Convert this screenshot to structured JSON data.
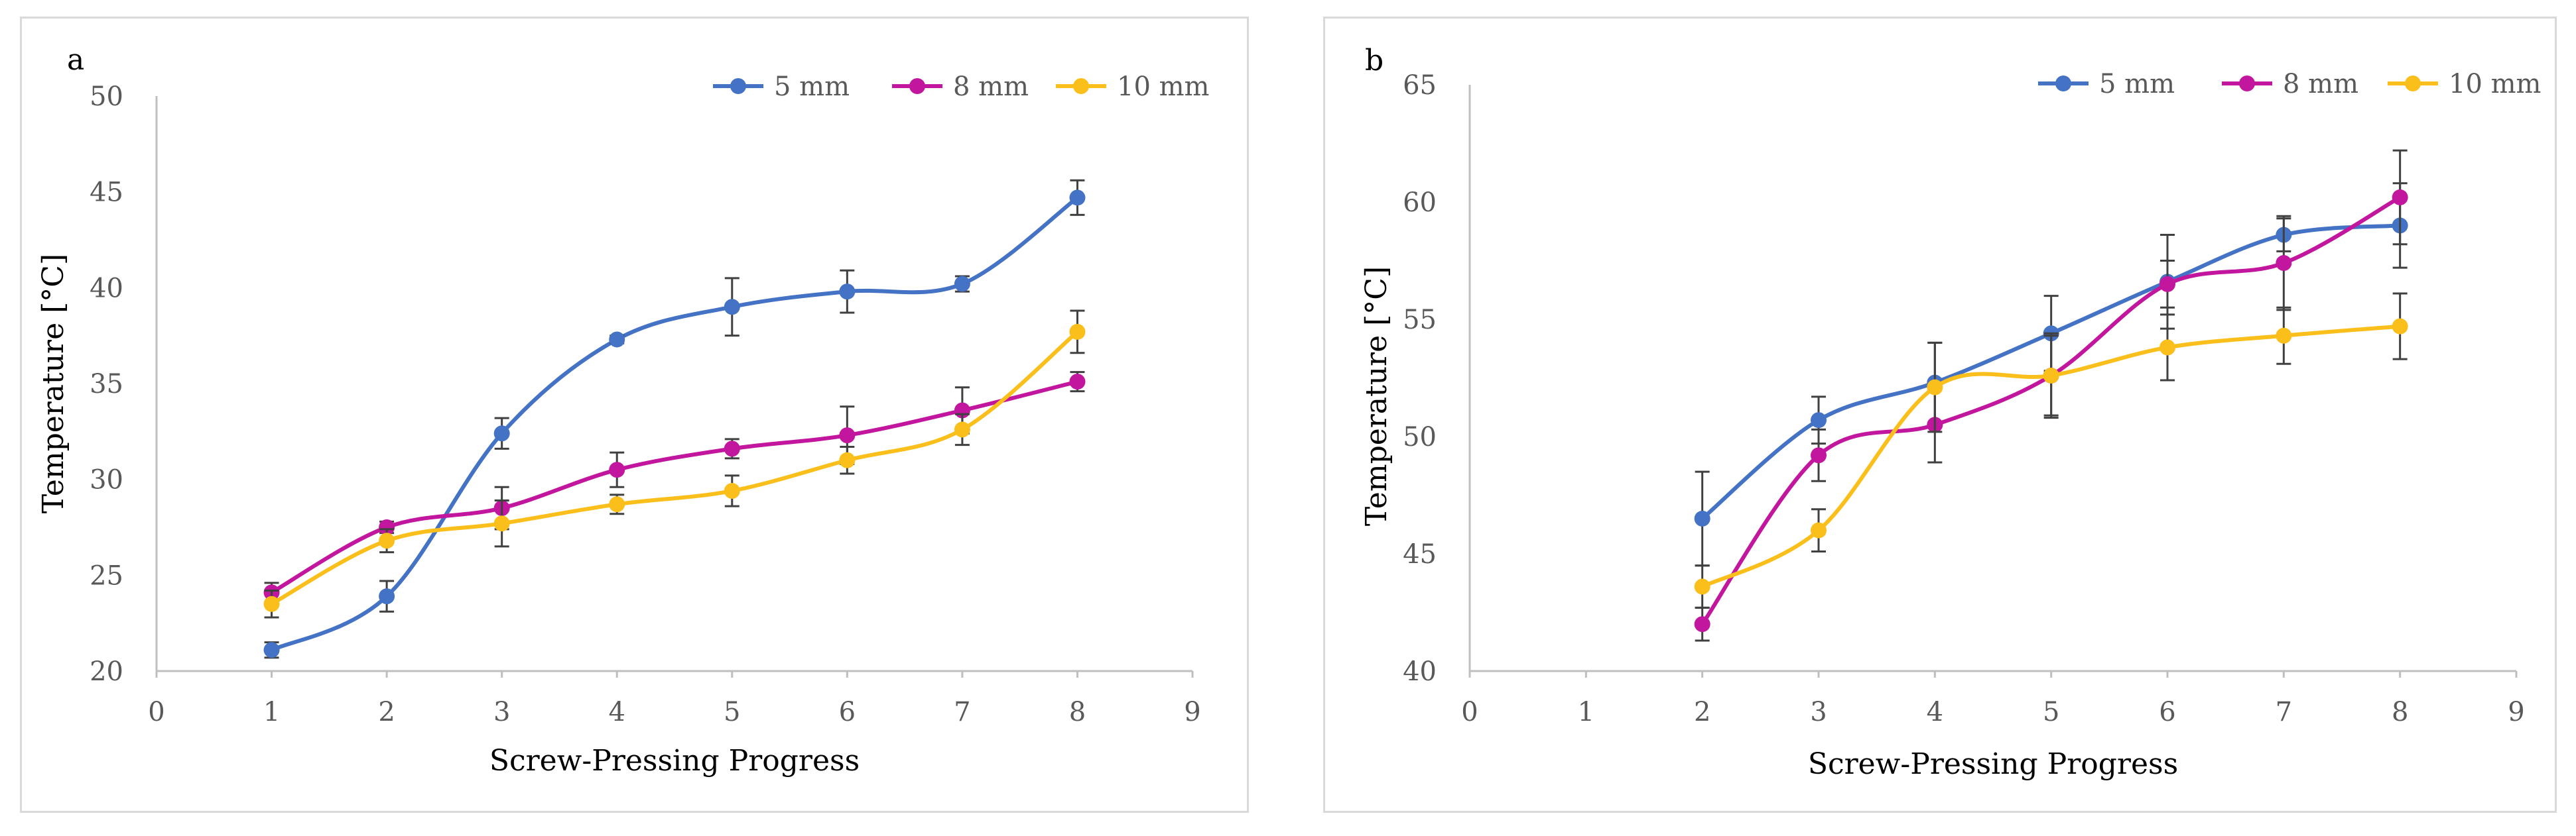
{
  "colors": {
    "s5": "#4472c4",
    "s8": "#c1169d",
    "s10": "#fbbf1b",
    "axis": "#bfbfbf",
    "err": "#404040",
    "text": "#595959"
  },
  "chart_data": [
    {
      "type": "line",
      "panel_label": "a",
      "xlabel": "Screw-Pressing Progress",
      "ylabel": "Temperature [°C]",
      "xlim": [
        0,
        9
      ],
      "ylim": [
        20,
        50
      ],
      "xticks": [
        0,
        1,
        2,
        3,
        4,
        5,
        6,
        7,
        8,
        9
      ],
      "yticks": [
        20,
        25,
        30,
        35,
        40,
        45,
        50
      ],
      "grid": false,
      "legend_position": "top-right",
      "series": [
        {
          "name": "5 mm",
          "color": "#4472c4",
          "x": [
            1,
            2,
            3,
            4,
            5,
            6,
            7,
            8
          ],
          "y": [
            21.1,
            23.9,
            32.4,
            37.3,
            39.0,
            39.8,
            40.2,
            44.7
          ],
          "err": [
            0.4,
            0.8,
            0.8,
            0.2,
            1.5,
            1.1,
            0.4,
            0.9
          ]
        },
        {
          "name": "8 mm",
          "color": "#c1169d",
          "x": [
            1,
            2,
            3,
            4,
            5,
            6,
            7,
            8
          ],
          "y": [
            24.1,
            27.5,
            28.5,
            30.5,
            31.6,
            32.3,
            33.6,
            35.1
          ],
          "err": [
            0.5,
            0.3,
            1.1,
            0.9,
            0.5,
            1.5,
            1.2,
            0.5
          ]
        },
        {
          "name": "10 mm",
          "color": "#fbbf1b",
          "x": [
            1,
            2,
            3,
            4,
            5,
            6,
            7,
            8
          ],
          "y": [
            23.5,
            26.8,
            27.7,
            28.7,
            29.4,
            31.0,
            32.6,
            37.7
          ],
          "err": [
            0.7,
            0.6,
            1.2,
            0.5,
            0.8,
            0.7,
            0.8,
            1.1
          ]
        }
      ]
    },
    {
      "type": "line",
      "panel_label": "b",
      "xlabel": "Screw-Pressing Progress",
      "ylabel": "Temperature [°C]",
      "xlim": [
        0,
        9
      ],
      "ylim": [
        40,
        65
      ],
      "xticks": [
        0,
        1,
        2,
        3,
        4,
        5,
        6,
        7,
        8,
        9
      ],
      "yticks": [
        40,
        45,
        50,
        55,
        60,
        65
      ],
      "grid": false,
      "legend_position": "top-right",
      "series": [
        {
          "name": "5 mm",
          "color": "#4472c4",
          "x": [
            2,
            3,
            4,
            5,
            6,
            7,
            8
          ],
          "y": [
            46.5,
            50.7,
            52.3,
            54.4,
            56.6,
            58.6,
            59.0
          ],
          "err": [
            2.0,
            1.0,
            1.7,
            1.6,
            2.0,
            0.7,
            1.8
          ]
        },
        {
          "name": "8 mm",
          "color": "#c1169d",
          "x": [
            2,
            3,
            4,
            5,
            6,
            7,
            8
          ],
          "y": [
            42.0,
            49.2,
            50.5,
            52.6,
            56.5,
            57.4,
            60.2
          ],
          "err": [
            0.7,
            1.1,
            1.6,
            1.8,
            1.0,
            2.0,
            2.0
          ]
        },
        {
          "name": "10 mm",
          "color": "#fbbf1b",
          "x": [
            2,
            3,
            4,
            5,
            6,
            7,
            8
          ],
          "y": [
            43.6,
            46.0,
            52.1,
            52.6,
            53.8,
            54.3,
            54.7
          ],
          "err": [
            0.9,
            0.9,
            1.9,
            1.7,
            1.4,
            1.2,
            1.4
          ]
        }
      ]
    }
  ]
}
